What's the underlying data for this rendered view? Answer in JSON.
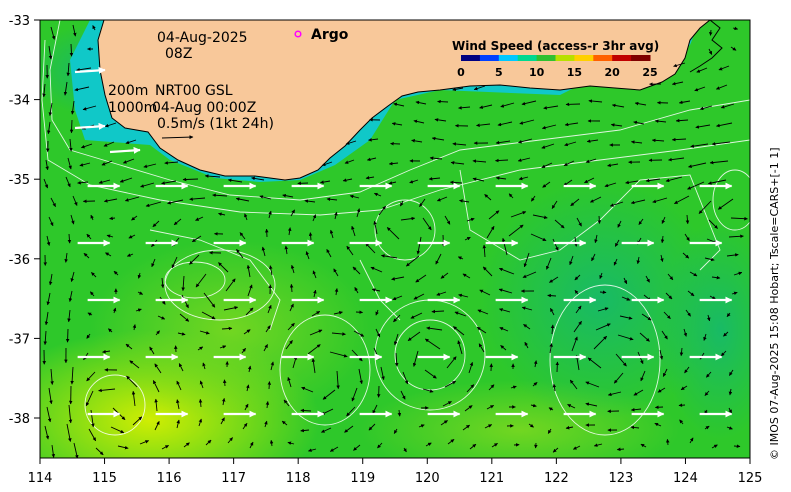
{
  "map": {
    "date": "04-Aug-2025",
    "time": "08Z",
    "depth_label_1": "200m",
    "depth_label_2": "1000m",
    "product": "NRT00 GSL",
    "product_time": "04-Aug 00:00Z",
    "scale_note": "0.5m/s (1kt 24h)",
    "argo_label": "Argo",
    "credit": "© IMOS 07-Aug-2025 15:08 Hobart; Tscale=CARS+[-1 1]",
    "lon_ticks": [
      "114",
      "115",
      "116",
      "117",
      "118",
      "119",
      "120",
      "121",
      "122",
      "123",
      "124",
      "125"
    ],
    "lat_ticks": [
      "-33",
      "-34",
      "-35",
      "-36",
      "-37",
      "-38"
    ]
  },
  "colorbar": {
    "title": "Wind Speed (access-r 3hr avg)",
    "ticks": [
      "0",
      "5",
      "10",
      "15",
      "20",
      "25"
    ],
    "colors": [
      "#000080",
      "#0040ff",
      "#00c8ff",
      "#00d890",
      "#30c030",
      "#b8e000",
      "#ffd000",
      "#ff6000",
      "#c00000",
      "#800000"
    ]
  },
  "colors": {
    "land": "#f8c89a",
    "sea_main": "#2ec82a",
    "sea_light": "#b8ec14",
    "sea_teal": "#18c878",
    "arrow": "#000000",
    "wind_arrow": "#ffffff",
    "argo": "#ff00ff"
  },
  "icons": [
    "north-arrow-icon",
    "argo-float-icon"
  ]
}
